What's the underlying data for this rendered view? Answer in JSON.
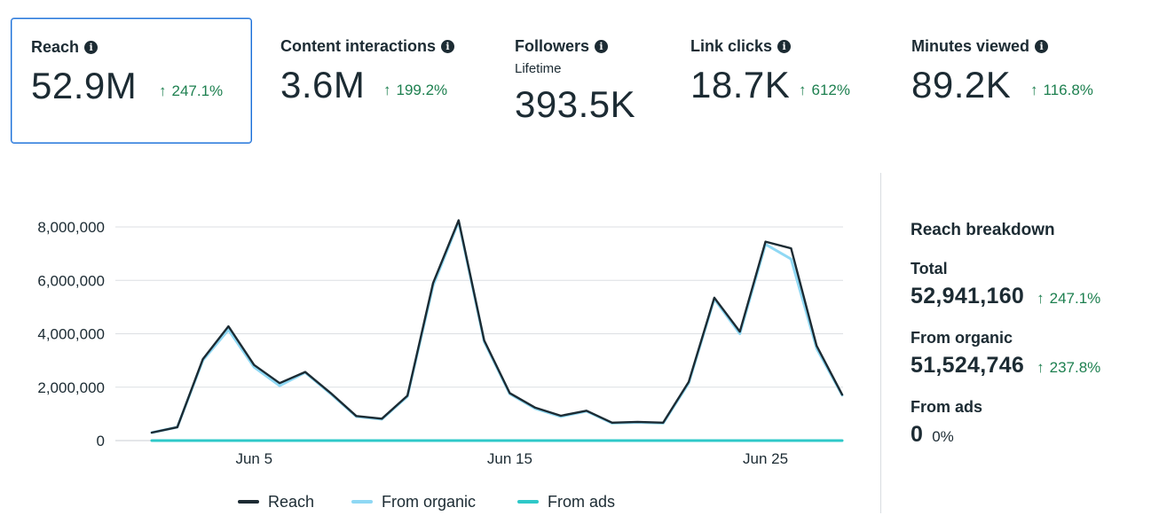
{
  "metrics": [
    {
      "title": "Reach",
      "value": "52.9M",
      "change": "247.1%",
      "selected": true
    },
    {
      "title": "Content interactions",
      "value": "3.6M",
      "change": "199.2%"
    },
    {
      "title": "Followers",
      "subtitle": "Lifetime",
      "value": "393.5K"
    },
    {
      "title": "Link clicks",
      "value": "18.7K",
      "change": "612%"
    },
    {
      "title": "Minutes viewed",
      "value": "89.2K",
      "change": "116.8%"
    }
  ],
  "breakdown": {
    "heading": "Reach breakdown",
    "total_label": "Total",
    "total_value": "52,941,160",
    "total_change": "247.1%",
    "organic_label": "From organic",
    "organic_value": "51,524,746",
    "organic_change": "237.8%",
    "ads_label": "From ads",
    "ads_value": "0",
    "ads_pct": "0%"
  },
  "colors": {
    "positive": "#1e8050",
    "reach": "#1c2b33",
    "organic": "#8fd8f4",
    "ads": "#2ec8c8",
    "grid": "#dcdfe3"
  },
  "chart_data": {
    "type": "line",
    "title": "",
    "xlabel": "",
    "ylabel": "",
    "ylim": [
      0,
      8000000
    ],
    "yticks": [
      0,
      2000000,
      4000000,
      6000000,
      8000000
    ],
    "ytick_labels": [
      "0",
      "2,000,000",
      "4,000,000",
      "6,000,000",
      "8,000,000"
    ],
    "x": [
      1,
      2,
      3,
      4,
      5,
      6,
      7,
      8,
      9,
      10,
      11,
      12,
      13,
      14,
      15,
      16,
      17,
      18,
      19,
      20,
      21,
      22,
      23,
      24,
      25,
      26,
      27,
      28
    ],
    "xticks": [
      {
        "x": 5,
        "label": "Jun 5"
      },
      {
        "x": 15,
        "label": "Jun 15"
      },
      {
        "x": 25,
        "label": "Jun 25"
      }
    ],
    "legend_position": "bottom",
    "series": [
      {
        "name": "From ads",
        "color_key": "ads",
        "values": [
          0,
          0,
          0,
          0,
          0,
          0,
          0,
          0,
          0,
          0,
          0,
          0,
          0,
          0,
          0,
          0,
          0,
          0,
          0,
          0,
          0,
          0,
          0,
          0,
          0,
          0,
          0,
          0
        ]
      },
      {
        "name": "From organic",
        "color_key": "organic",
        "values": [
          300000,
          500000,
          3000000,
          4150000,
          2750000,
          2050000,
          2550000,
          1750000,
          900000,
          800000,
          1650000,
          5800000,
          8200000,
          3700000,
          1750000,
          1200000,
          900000,
          1100000,
          650000,
          680000,
          650000,
          2150000,
          5300000,
          4000000,
          7350000,
          6800000,
          3450000,
          1700000
        ]
      },
      {
        "name": "Reach",
        "color_key": "reach",
        "values": [
          300000,
          500000,
          3050000,
          4280000,
          2830000,
          2150000,
          2570000,
          1780000,
          920000,
          820000,
          1680000,
          5900000,
          8250000,
          3750000,
          1780000,
          1230000,
          930000,
          1120000,
          670000,
          700000,
          670000,
          2200000,
          5350000,
          4080000,
          7450000,
          7200000,
          3550000,
          1720000
        ]
      }
    ],
    "legend": [
      "Reach",
      "From organic",
      "From ads"
    ]
  }
}
